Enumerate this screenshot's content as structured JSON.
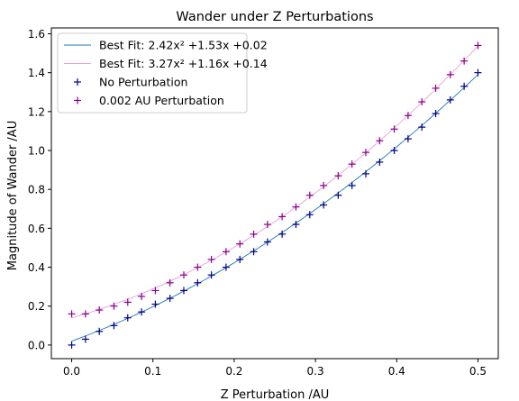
{
  "chart_data": {
    "type": "scatter",
    "title": "Wander under Z Perturbations",
    "xlabel": "Z Perturbation /AU",
    "ylabel": "Magnitude of Wander /AU",
    "xlim": [
      -0.025,
      0.525
    ],
    "ylim": [
      -0.07,
      1.63
    ],
    "xticks": [
      0.0,
      0.1,
      0.2,
      0.3,
      0.4,
      0.5
    ],
    "xtick_labels": [
      "0.0",
      "0.1",
      "0.2",
      "0.3",
      "0.4",
      "0.5"
    ],
    "yticks": [
      0.0,
      0.2,
      0.4,
      0.6,
      0.8,
      1.0,
      1.2,
      1.4,
      1.6
    ],
    "ytick_labels": [
      "0.0",
      "0.2",
      "0.4",
      "0.6",
      "0.8",
      "1.0",
      "1.2",
      "1.4",
      "1.6"
    ],
    "grid": false,
    "legend_position": "top-left",
    "fits": [
      {
        "name": "Best Fit: 2.42x² +1.53x +0.02",
        "coefficients": [
          2.42,
          1.53,
          0.02
        ],
        "color": "#1f77b4"
      },
      {
        "name": "Best Fit: 3.27x² +1.16x +0.14",
        "coefficients": [
          3.27,
          1.16,
          0.14
        ],
        "color": "#e8a0d6"
      }
    ],
    "x": [
      0.0,
      0.017,
      0.034,
      0.052,
      0.069,
      0.086,
      0.103,
      0.121,
      0.138,
      0.155,
      0.172,
      0.19,
      0.207,
      0.224,
      0.241,
      0.259,
      0.276,
      0.293,
      0.31,
      0.328,
      0.345,
      0.362,
      0.379,
      0.397,
      0.414,
      0.431,
      0.448,
      0.466,
      0.483,
      0.5
    ],
    "series": [
      {
        "name": "No Perturbation",
        "marker": "+",
        "color": "#00008b",
        "values": [
          0.0,
          0.03,
          0.07,
          0.1,
          0.14,
          0.17,
          0.21,
          0.24,
          0.28,
          0.32,
          0.36,
          0.4,
          0.44,
          0.48,
          0.53,
          0.57,
          0.62,
          0.67,
          0.72,
          0.77,
          0.82,
          0.88,
          0.94,
          1.0,
          1.06,
          1.12,
          1.19,
          1.26,
          1.33,
          1.4
        ]
      },
      {
        "name": "0.002 AU Perturbation",
        "marker": "+",
        "color": "#8b008b",
        "values": [
          0.16,
          0.16,
          0.18,
          0.2,
          0.22,
          0.25,
          0.28,
          0.32,
          0.36,
          0.4,
          0.44,
          0.48,
          0.52,
          0.57,
          0.62,
          0.66,
          0.71,
          0.77,
          0.82,
          0.87,
          0.93,
          0.99,
          1.05,
          1.11,
          1.18,
          1.25,
          1.32,
          1.39,
          1.46,
          1.54
        ]
      }
    ]
  }
}
